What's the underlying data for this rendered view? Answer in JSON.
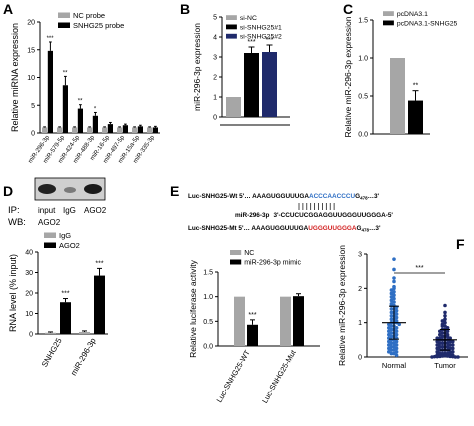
{
  "panels": {
    "A": "A",
    "B": "B",
    "C": "C",
    "D": "D",
    "E": "E",
    "F": "F"
  },
  "colors": {
    "black": "#000000",
    "gray": "#a6a6a6",
    "navy": "#1f2a6b",
    "blue_seq": "#2f6fc4",
    "red_seq": "#d11f1f"
  },
  "blot": {
    "ip_label": "IP:",
    "lanes": [
      "input",
      "IgG",
      "AGO2"
    ],
    "wb_label": "WB:",
    "wb_target": "AGO2"
  },
  "sequences": {
    "wt_prefix": "Luc-SNHG25-Wt 5'… ",
    "wt_body": "AAAGUGGUUUGA",
    "wt_site": "ACCCAACCCU",
    "wt_end": "G",
    "wt_sub": "478",
    "wt_tail": "…3'",
    "mirna_label": "miR-296-3p",
    "mirna_seq": "3'-CCUCUCGGAGGUUGGGUUGGGA-5'",
    "mut_prefix": "Luc-SNHG25-Mt 5'… ",
    "mut_body": "AAAGUGGUUUGA",
    "mut_site": "UGGGUUGGGA",
    "mut_end": "G",
    "mut_sub": "478",
    "mut_tail": "…3'"
  },
  "chart_data": [
    {
      "panel": "A",
      "type": "bar",
      "ylabel": "Relative miRNA expression",
      "ylim": [
        0,
        20
      ],
      "yticks": [
        0,
        5,
        10,
        15,
        20
      ],
      "categories": [
        "miR-296-3p",
        "miR-579-5p",
        "miR-424-5p",
        "miR-488-3p",
        "miR-16-5p",
        "miR-497-5p",
        "miR-15a-5p",
        "miR-335-3p"
      ],
      "series": [
        {
          "name": "NC probe",
          "color": "#a6a6a6",
          "values": [
            1,
            1,
            1,
            1,
            1,
            1,
            1,
            1
          ],
          "errors": [
            0.1,
            0.1,
            0.1,
            0.1,
            0.1,
            0.1,
            0.1,
            0.1
          ]
        },
        {
          "name": "SNHG25 probe",
          "color": "#000000",
          "values": [
            14.8,
            8.6,
            4.4,
            3.1,
            1.6,
            1.4,
            1.2,
            1.0
          ],
          "errors": [
            1.6,
            1.6,
            0.7,
            0.6,
            0.3,
            0.2,
            0.2,
            0.2
          ]
        }
      ],
      "significance": [
        "***",
        "**",
        "**",
        "*",
        "",
        "",
        "",
        ""
      ],
      "legend": "top-right"
    },
    {
      "panel": "B",
      "type": "bar",
      "ylabel": "miR-296-3p expression",
      "ylim": [
        0,
        5
      ],
      "yticks": [
        0,
        1,
        2,
        3,
        4,
        5
      ],
      "categories": [
        "si-NC",
        "si-SNHG25#1",
        "si-SNHG25#2"
      ],
      "values": [
        1,
        3.2,
        3.25
      ],
      "errors": [
        0,
        0.3,
        0.35
      ],
      "colors": [
        "#a6a6a6",
        "#000000",
        "#1f2a6b"
      ],
      "significance": [
        "",
        "***",
        "***"
      ],
      "legend": "top-left"
    },
    {
      "panel": "C",
      "type": "bar",
      "ylabel": "Relative miR-296-3p expression",
      "ylim": [
        0,
        1.5
      ],
      "yticks": [
        0,
        0.5,
        1,
        1.5
      ],
      "ytick_labels": [
        "0.0",
        "0.5",
        "1.0",
        "1.5"
      ],
      "categories": [
        "pcDNA3.1",
        "pcDNA3.1-SNHG25"
      ],
      "values": [
        1,
        0.44
      ],
      "errors": [
        0,
        0.13
      ],
      "colors": [
        "#a6a6a6",
        "#000000"
      ],
      "significance": [
        "",
        "**"
      ],
      "legend": "top-left"
    },
    {
      "panel": "D",
      "type": "bar",
      "ylabel": "RNA level (% input)",
      "ylim": [
        0,
        40
      ],
      "yticks": [
        0,
        10,
        20,
        30,
        40
      ],
      "categories": [
        "SNHG25",
        "miR-296-3p"
      ],
      "series": [
        {
          "name": "IgG",
          "color": "#a6a6a6",
          "values": [
            0.6,
            1.0
          ],
          "errors": [
            0.4,
            0.5
          ]
        },
        {
          "name": "AGO2",
          "color": "#000000",
          "values": [
            15.5,
            28.5
          ],
          "errors": [
            1.8,
            3.5
          ]
        }
      ],
      "significance": [
        "***",
        "***"
      ],
      "legend": "top-left"
    },
    {
      "panel": "E",
      "type": "bar",
      "ylabel": "Relative luciferase activity",
      "ylim": [
        0,
        1.5
      ],
      "yticks": [
        0,
        0.5,
        1,
        1.5
      ],
      "ytick_labels": [
        "0.0",
        "0.5",
        "1.0",
        "1.5"
      ],
      "categories": [
        "Luc-SNHG25-WT",
        "Luc-SNHG25-Mut"
      ],
      "series": [
        {
          "name": "NC",
          "color": "#a6a6a6",
          "values": [
            1.0,
            1.0
          ],
          "errors": [
            0,
            0
          ]
        },
        {
          "name": "miR-296-3p mimic",
          "color": "#000000",
          "values": [
            0.43,
            1.01
          ],
          "errors": [
            0.1,
            0.05
          ]
        }
      ],
      "significance": [
        "***",
        ""
      ],
      "legend": "top-left"
    },
    {
      "panel": "F",
      "type": "scatter",
      "ylabel": "Relative miR-296-3p expression",
      "ylim": [
        0,
        3
      ],
      "yticks": [
        0,
        1,
        2,
        3
      ],
      "categories": [
        "Normal",
        "Tumor"
      ],
      "colors": [
        "#2f6fc4",
        "#1f2a6b"
      ],
      "groups": [
        {
          "name": "Normal",
          "mean": 1.0,
          "sd": 0.48,
          "points": [
            2.85,
            2.55,
            2.3,
            2.2,
            2.05,
            2.0,
            1.95,
            1.9,
            1.85,
            1.8,
            1.75,
            1.7,
            1.65,
            1.6,
            1.55,
            1.5,
            1.5,
            1.45,
            1.4,
            1.4,
            1.35,
            1.3,
            1.3,
            1.25,
            1.2,
            1.2,
            1.15,
            1.1,
            1.1,
            1.05,
            1.0,
            1.0,
            1.0,
            0.95,
            0.95,
            0.9,
            0.9,
            0.85,
            0.85,
            0.8,
            0.8,
            0.75,
            0.75,
            0.7,
            0.7,
            0.65,
            0.65,
            0.6,
            0.6,
            0.55,
            0.55,
            0.5,
            0.5,
            0.45,
            0.45,
            0.4,
            0.4,
            0.35,
            0.35,
            0.3,
            0.3,
            0.25,
            0.25,
            0.2,
            0.2,
            0.15,
            0.15,
            0.1,
            0.1,
            0.05
          ]
        },
        {
          "name": "Tumor",
          "mean": 0.5,
          "sd": 0.3,
          "points": [
            1.5,
            1.3,
            1.2,
            1.1,
            1.05,
            1.0,
            0.95,
            0.9,
            0.9,
            0.85,
            0.8,
            0.8,
            0.75,
            0.75,
            0.7,
            0.7,
            0.65,
            0.65,
            0.6,
            0.6,
            0.6,
            0.55,
            0.55,
            0.55,
            0.5,
            0.5,
            0.5,
            0.5,
            0.45,
            0.45,
            0.45,
            0.4,
            0.4,
            0.4,
            0.4,
            0.35,
            0.35,
            0.35,
            0.3,
            0.3,
            0.3,
            0.3,
            0.25,
            0.25,
            0.25,
            0.2,
            0.2,
            0.2,
            0.2,
            0.15,
            0.15,
            0.15,
            0.1,
            0.1,
            0.1,
            0.1,
            0.08,
            0.06,
            0.05,
            0.04,
            0.03,
            0.03,
            0.02,
            0.02,
            0.01,
            0.01,
            0.01,
            0.0,
            0.0,
            0.0
          ]
        }
      ],
      "significance": "***"
    }
  ]
}
